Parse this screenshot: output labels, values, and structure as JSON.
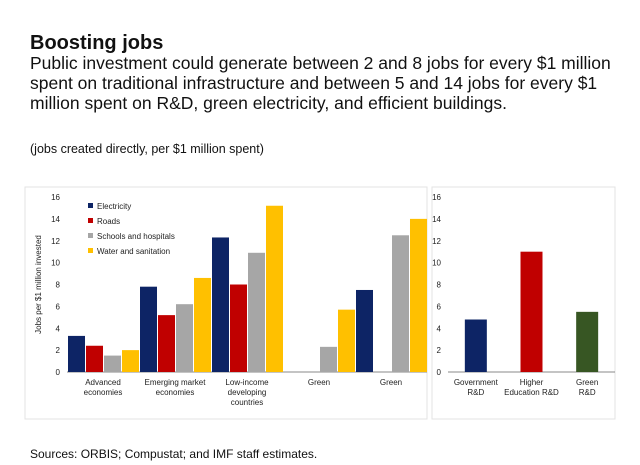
{
  "title": "Boosting jobs",
  "subtitle": "Public investment could generate between 2 and 8 jobs for every $1 million spent on traditional infrastructure and between 5 and 14 jobs for every $1 million spent on R&D, green electricity, and efficient buildings.",
  "note": "(jobs created directly, per $1 million spent)",
  "source": "Sources: ORBIS; Compustat; and IMF staff estimates.",
  "chart_data": [
    {
      "type": "bar",
      "ylabel": "Jobs per $1 million invested",
      "ylim": [
        0,
        16
      ],
      "yticks": [
        "0",
        "2",
        "4",
        "6",
        "8",
        "10",
        "12",
        "14",
        "16"
      ],
      "legend_position": "top-left",
      "groups": [
        {
          "label": [
            "Advanced",
            "economies"
          ],
          "values": [
            3.3,
            2.4,
            1.5,
            2.0
          ]
        },
        {
          "label": [
            "Emerging market",
            "economies"
          ],
          "values": [
            7.8,
            5.2,
            6.2,
            8.6
          ]
        },
        {
          "label": [
            "Low-income",
            "developing",
            "countries"
          ],
          "values": [
            12.3,
            8.0,
            10.9,
            15.2
          ]
        },
        {
          "label": [
            "Green"
          ],
          "values": [
            null,
            null,
            2.3,
            5.7
          ]
        },
        {
          "label": [
            "Green"
          ],
          "values": [
            7.5,
            null,
            12.5,
            14.0
          ]
        }
      ],
      "series": [
        {
          "name": "Electricity",
          "color": "#0d2465"
        },
        {
          "name": "Roads",
          "color": "#c00000"
        },
        {
          "name": "Schools and hospitals",
          "color": "#a6a6a6"
        },
        {
          "name": "Water and sanitation",
          "color": "#ffc000"
        }
      ]
    },
    {
      "type": "bar",
      "ylim": [
        0,
        16
      ],
      "yticks": [
        "0",
        "2",
        "4",
        "6",
        "8",
        "10",
        "12",
        "14",
        "16"
      ],
      "categories": [
        {
          "label": [
            "Government",
            "R&D"
          ],
          "value": 4.8,
          "color": "#0d2465"
        },
        {
          "label": [
            "Higher",
            "Education R&D"
          ],
          "value": 11.0,
          "color": "#c00000"
        },
        {
          "label": [
            "Green",
            "R&D"
          ],
          "value": 5.5,
          "color": "#375623"
        }
      ]
    }
  ]
}
